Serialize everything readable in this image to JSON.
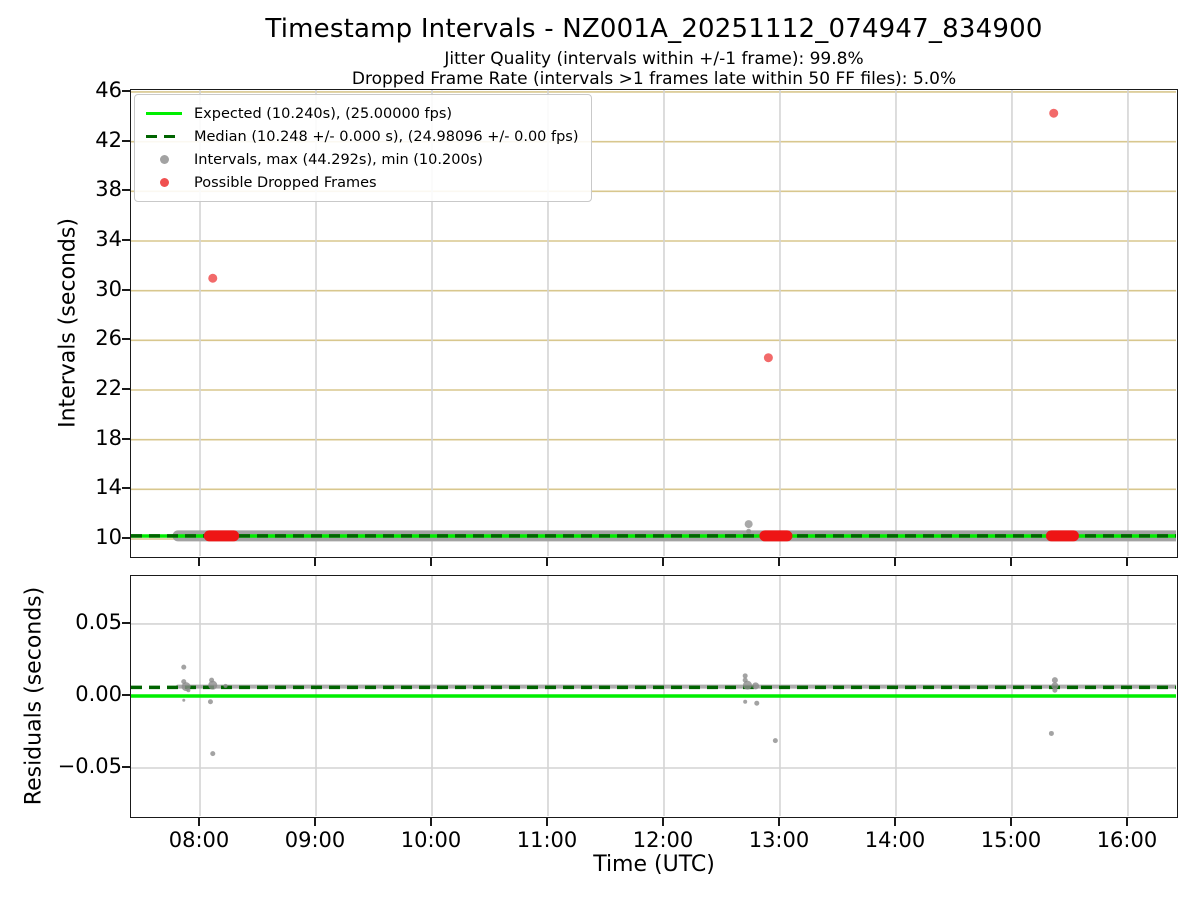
{
  "figure": {
    "title": "Timestamp Intervals - NZ001A_20251112_074947_834900",
    "subtitle1": "Jitter Quality (intervals within +/-1 frame): 99.8%",
    "subtitle2": "Dropped Frame Rate (intervals >1 frames late within 50 FF files): 5.0%",
    "xlabel": "Time (UTC)"
  },
  "colors": {
    "expected_green": "#00ee00",
    "median_darkgreen": "#006400",
    "intervals_gray": "#a2a2a2",
    "point_gray": "#8c8c8c",
    "dropped_red_segment": "#ee1515",
    "dropped_red_point": "#f05050",
    "grid_tan": "#d8c78e",
    "grid_gray": "#d4d4d4",
    "spine": "#1a1a1a"
  },
  "chart_data": [
    {
      "type": "scatter",
      "name": "intervals-panel",
      "ylabel": "Intervals (seconds)",
      "ylim": [
        8.39,
        46.16
      ],
      "yticks": [
        10,
        14,
        18,
        22,
        26,
        30,
        34,
        38,
        42,
        46
      ],
      "xlim_hours": [
        7.405,
        16.44
      ],
      "xticks_hours": [
        8,
        9,
        10,
        11,
        12,
        13,
        14,
        15,
        16
      ],
      "grid": true,
      "expected_interval_s": 10.24,
      "expected_fps": 25.0,
      "median_interval_s": 10.248,
      "median_fps": 24.98096,
      "max_interval_s": 44.292,
      "min_interval_s": 10.2,
      "legend_position": "upper left",
      "legend": [
        {
          "marker": "solid-line",
          "color": "#00ee00",
          "label": "Expected (10.240s), (25.00000 fps)"
        },
        {
          "marker": "dashed-line",
          "color": "#006400",
          "label": "Median (10.248 +/- 0.000 s), (24.98096 +/- 0.00 fps)"
        },
        {
          "marker": "dot",
          "color": "#a2a2a2",
          "label": "Intervals, max (44.292s), min (10.200s)"
        },
        {
          "marker": "dot",
          "color": "#f05050",
          "label": "Possible Dropped Frames"
        }
      ],
      "interval_band": {
        "h_start": 7.81,
        "h_end": 16.44,
        "center_s": 10.25
      },
      "gray_outliers": [
        {
          "h": 12.73,
          "v": 11.2,
          "r": 4
        },
        {
          "h": 12.73,
          "v": 10.62,
          "r": 2.5
        }
      ],
      "dropped_segments_hours": [
        [
          8.08,
          8.29
        ],
        [
          12.87,
          13.06
        ],
        [
          15.34,
          15.53
        ]
      ],
      "dropped_points": [
        {
          "h": 8.11,
          "v": 31.0
        },
        {
          "h": 12.9,
          "v": 24.6
        },
        {
          "h": 15.36,
          "v": 44.29
        }
      ]
    },
    {
      "type": "scatter",
      "name": "residuals-panel",
      "ylabel": "Residuals (seconds)",
      "xlabel": "Time (UTC)",
      "ylim": [
        -0.0854,
        0.0833
      ],
      "yticks": [
        {
          "v": 0.05,
          "label": "0.05"
        },
        {
          "v": 0.0,
          "label": "0.00"
        },
        {
          "v": -0.05,
          "label": "−0.05"
        }
      ],
      "xlim_hours": [
        7.405,
        16.44
      ],
      "xticks": [
        {
          "h": 8,
          "label": "08:00"
        },
        {
          "h": 9,
          "label": "09:00"
        },
        {
          "h": 10,
          "label": "10:00"
        },
        {
          "h": 11,
          "label": "11:00"
        },
        {
          "h": 12,
          "label": "12:00"
        },
        {
          "h": 13,
          "label": "13:00"
        },
        {
          "h": 14,
          "label": "14:00"
        },
        {
          "h": 15,
          "label": "15:00"
        },
        {
          "h": 16,
          "label": "16:00"
        }
      ],
      "grid": true,
      "zero_line_v": 0.0,
      "median_line_v": 0.006,
      "residual_band": {
        "h_start": 7.81,
        "h_end": 16.44,
        "center_v": 0.0065
      },
      "points": [
        {
          "h": 7.86,
          "v": 0.02,
          "r": 2.5
        },
        {
          "h": 7.86,
          "v": 0.01,
          "r": 2.5
        },
        {
          "h": 7.88,
          "v": 0.0065,
          "r": 4.5
        },
        {
          "h": 7.9,
          "v": 0.004,
          "r": 2
        },
        {
          "h": 7.86,
          "v": -0.003,
          "r": 1.5
        },
        {
          "h": 8.1,
          "v": 0.011,
          "r": 2.5
        },
        {
          "h": 8.11,
          "v": 0.0075,
          "r": 4.5
        },
        {
          "h": 8.09,
          "v": -0.004,
          "r": 2.5
        },
        {
          "h": 8.11,
          "v": -0.04,
          "r": 2.5
        },
        {
          "h": 8.22,
          "v": 0.007,
          "r": 2
        },
        {
          "h": 12.7,
          "v": 0.014,
          "r": 2.5
        },
        {
          "h": 12.7,
          "v": 0.011,
          "r": 2.5
        },
        {
          "h": 12.72,
          "v": 0.0075,
          "r": 4.5
        },
        {
          "h": 12.7,
          "v": -0.004,
          "r": 2
        },
        {
          "h": 12.79,
          "v": 0.007,
          "r": 3.5
        },
        {
          "h": 12.8,
          "v": -0.005,
          "r": 2.5
        },
        {
          "h": 12.96,
          "v": -0.031,
          "r": 2.5
        },
        {
          "h": 15.37,
          "v": 0.011,
          "r": 3
        },
        {
          "h": 15.37,
          "v": 0.007,
          "r": 3.5
        },
        {
          "h": 15.37,
          "v": 0.004,
          "r": 2.5
        },
        {
          "h": 15.34,
          "v": -0.026,
          "r": 2.5
        }
      ]
    }
  ]
}
